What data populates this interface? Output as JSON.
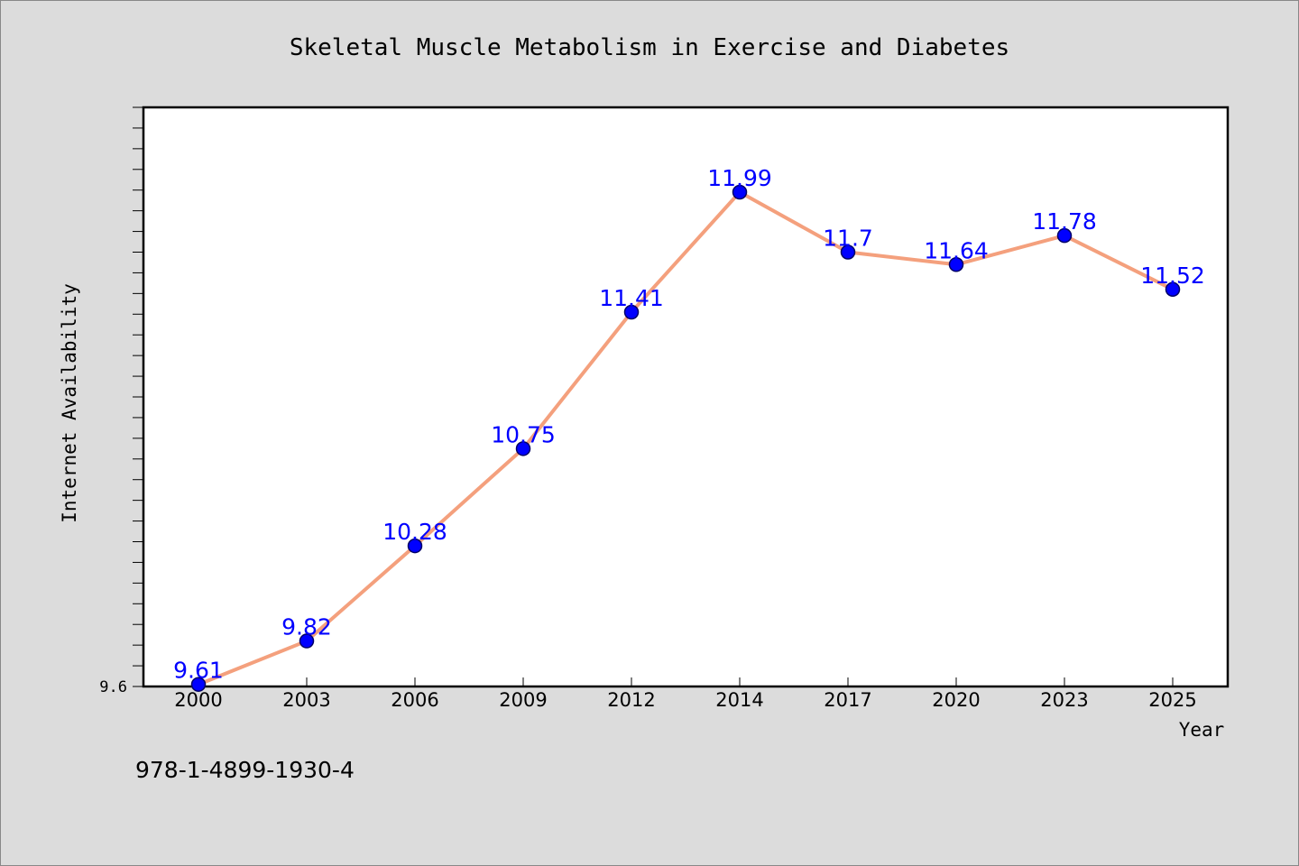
{
  "chart_data": {
    "type": "line",
    "title": "Skeletal Muscle Metabolism in Exercise and Diabetes",
    "xlabel": "Year",
    "ylabel": "Internet Availability",
    "categories": [
      "2000",
      "2003",
      "2006",
      "2009",
      "2012",
      "2014",
      "2017",
      "2020",
      "2023",
      "2025"
    ],
    "series": [
      {
        "values": [
          9.61,
          9.82,
          10.28,
          10.75,
          11.41,
          11.99,
          11.7,
          11.64,
          11.78,
          11.52
        ],
        "labels": [
          "9.61",
          "9.82",
          "10.28",
          "10.75",
          "11.41",
          "11.99",
          "11.7",
          "11.64",
          "11.78",
          "11.52"
        ]
      }
    ],
    "ylim": [
      9.6,
      12.4
    ],
    "yticks_labeled": [
      "9.6"
    ],
    "grid": false,
    "legend": "none",
    "colors": {
      "line": "#f4a07d",
      "marker": "#0000ff",
      "marker_edge": "#000066",
      "data_label": "#0000ff",
      "background": "#dcdcdc",
      "plot_background": "#ffffff"
    }
  },
  "footer": {
    "isbn": "978-1-4899-1930-4"
  }
}
